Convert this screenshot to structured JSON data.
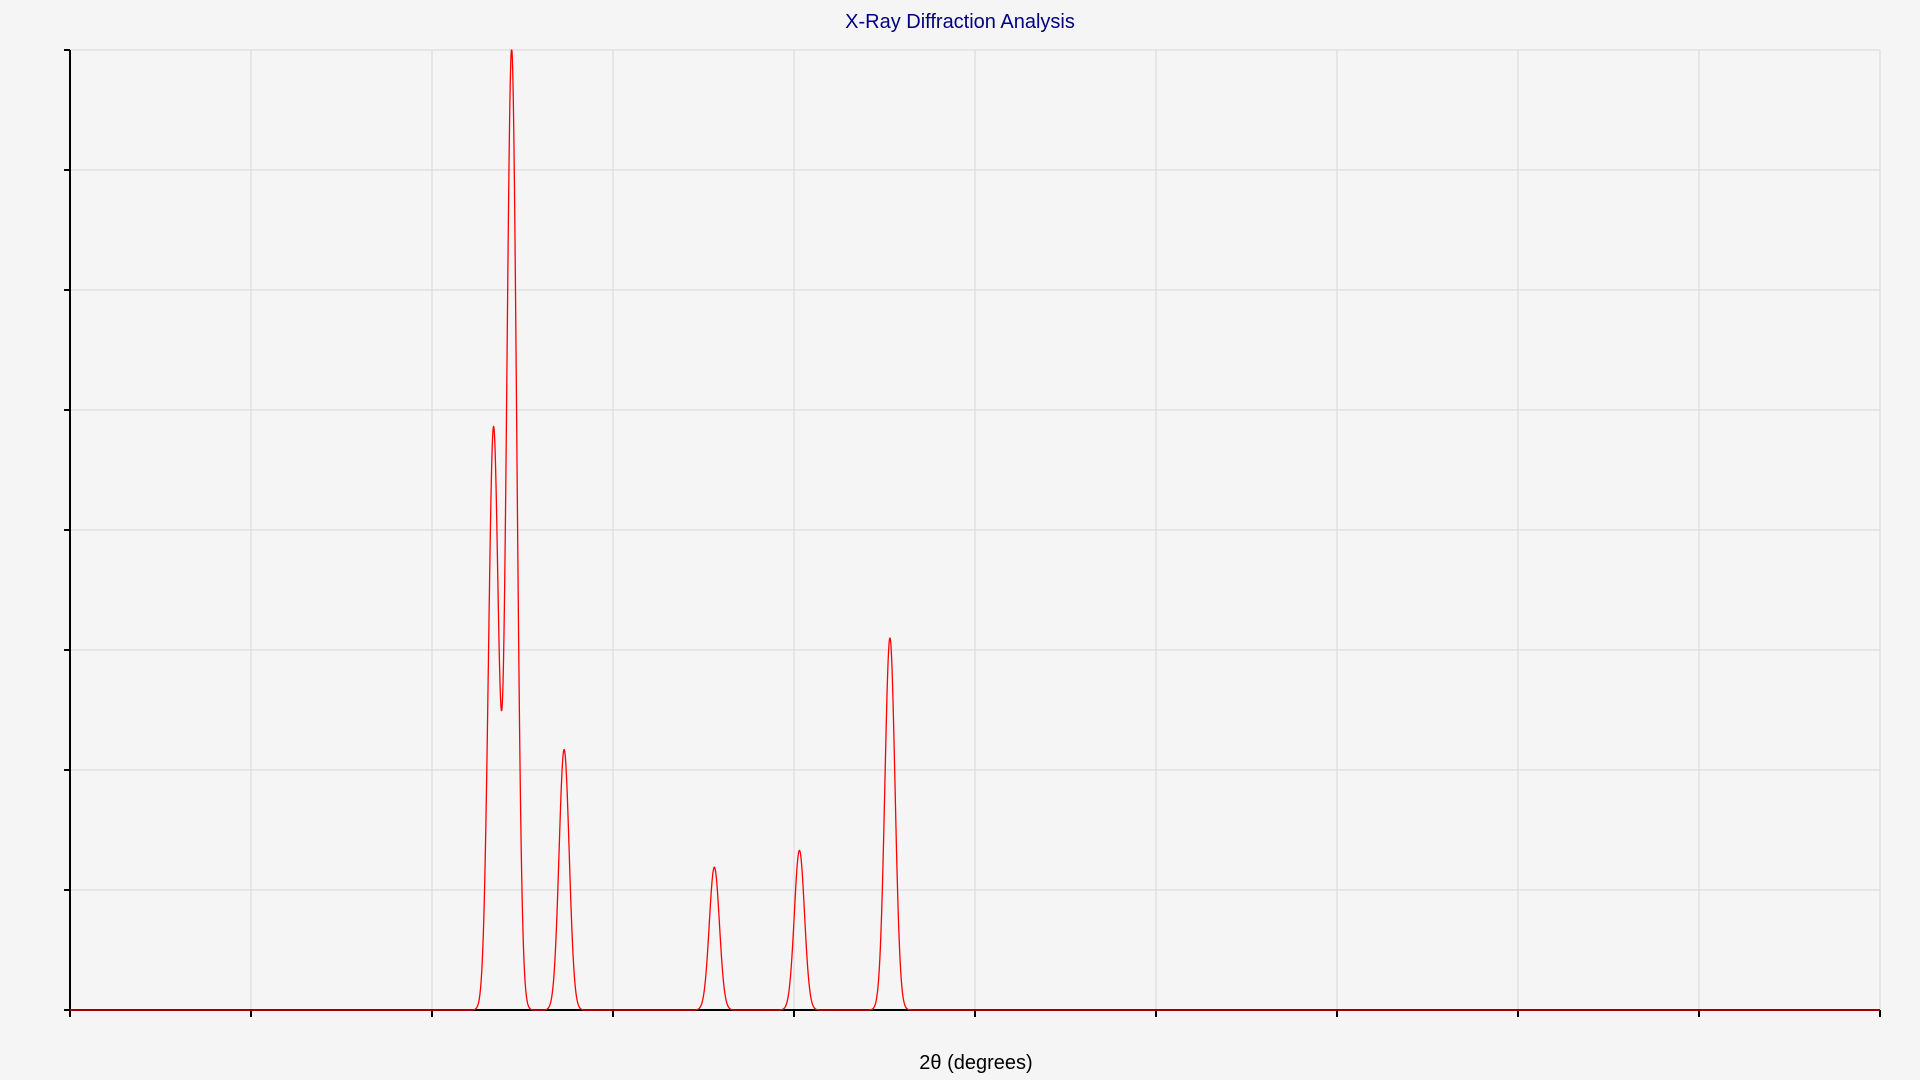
{
  "chart_data": {
    "type": "line",
    "title": "X-Ray Diffraction Analysis",
    "xlabel": "2θ (degrees)",
    "ylabel": "",
    "xlim": [
      0,
      100
    ],
    "ylim": [
      0,
      8
    ],
    "grid": true,
    "show_tick_labels": false,
    "colors": {
      "background": "#f5f5f5",
      "title": "#000080",
      "series": "#ff0000",
      "grid": "#d8d8d8",
      "axis": "#000000"
    },
    "series": [
      {
        "peaks": [
          {
            "x": 23.4,
            "y": 4.85
          },
          {
            "x": 24.4,
            "y": 8.0
          },
          {
            "x": 27.3,
            "y": 2.17
          },
          {
            "x": 35.6,
            "y": 1.19
          },
          {
            "x": 40.3,
            "y": 1.33
          },
          {
            "x": 45.3,
            "y": 3.1
          }
        ],
        "peak_sigma": 0.28,
        "baseline": 0
      }
    ]
  }
}
